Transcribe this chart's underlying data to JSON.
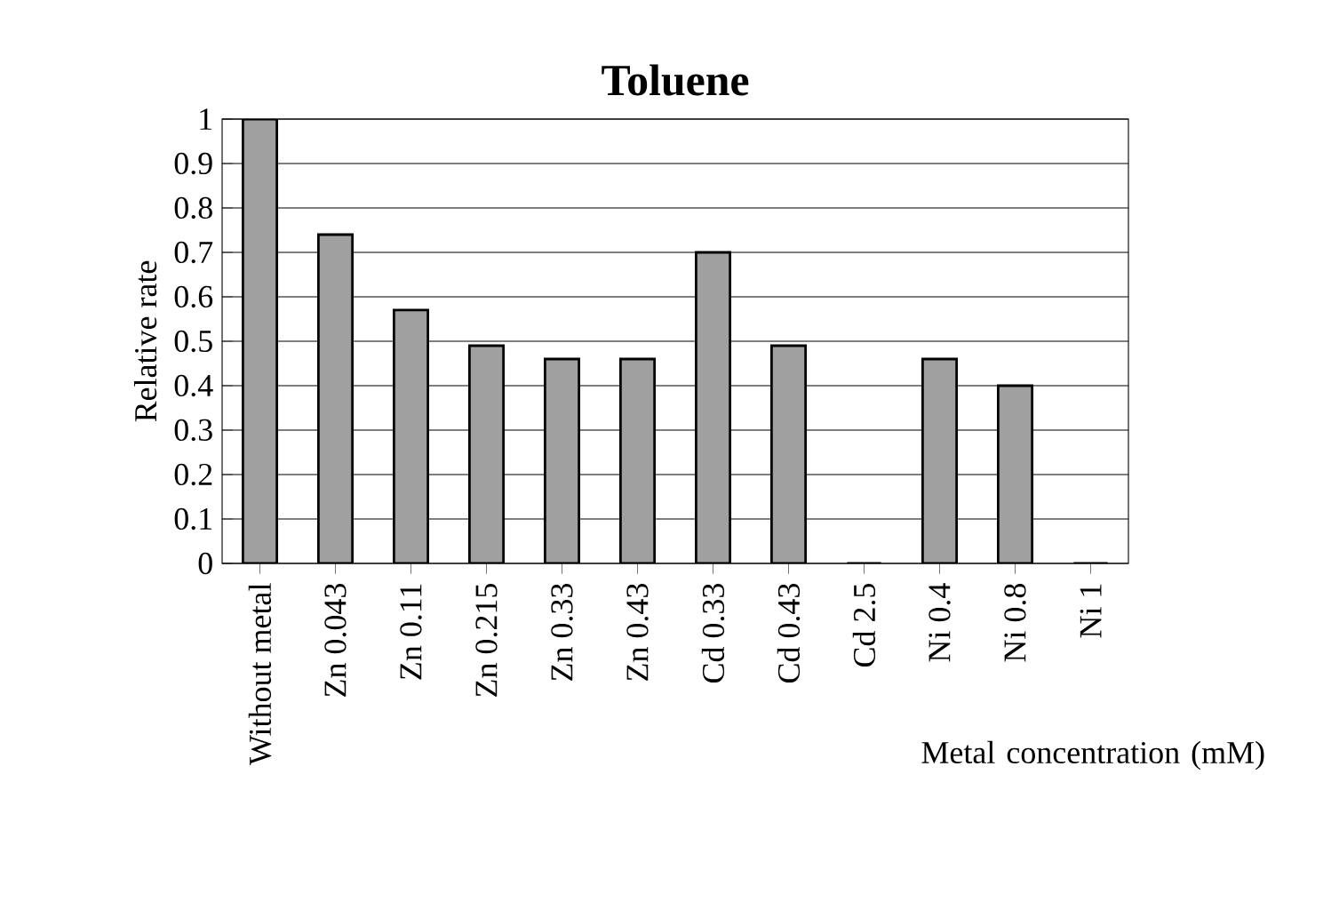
{
  "chart_data": {
    "type": "bar",
    "title": "Toluene",
    "xlabel": "Metal concentration (mM)",
    "ylabel": "Relative rate",
    "categories": [
      "Without metal",
      "Zn 0.043",
      "Zn 0.11",
      "Zn 0.215",
      "Zn 0.33",
      "Zn 0.43",
      "Cd 0.33",
      "Cd 0.43",
      "Cd 2.5",
      "Ni 0.4",
      "Ni 0.8",
      "Ni 1"
    ],
    "values": [
      1.0,
      0.74,
      0.57,
      0.49,
      0.46,
      0.46,
      0.7,
      0.49,
      0,
      0.46,
      0.4,
      0
    ],
    "color": "#a0a0a0",
    "ylim": [
      0,
      1
    ],
    "yticks": [
      0,
      0.1,
      0.2,
      0.3,
      0.4,
      0.5,
      0.6,
      0.7,
      0.8,
      0.9,
      1
    ],
    "grid": "y"
  }
}
